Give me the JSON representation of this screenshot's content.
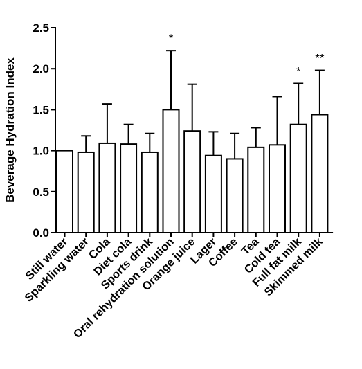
{
  "chart_data": {
    "type": "bar",
    "title": "",
    "xlabel": "",
    "ylabel": "Beverage Hydration Index",
    "ylim": [
      0,
      2.5
    ],
    "yticks": [
      "0.0",
      "0.5",
      "1.0",
      "1.5",
      "2.0",
      "2.5"
    ],
    "grid": false,
    "legend": "none",
    "categories": [
      "Still water",
      "Sparkling water",
      "Cola",
      "Diet cola",
      "Sports drink",
      "Oral rehydration solution",
      "Orange juice",
      "Lager",
      "Coffee",
      "Tea",
      "Cold tea",
      "Full fat milk",
      "Skimmed milk"
    ],
    "values": [
      1.0,
      0.98,
      1.09,
      1.08,
      0.98,
      1.5,
      1.24,
      0.94,
      0.9,
      1.04,
      1.07,
      1.32,
      1.44
    ],
    "error_upper": [
      1.0,
      1.18,
      1.57,
      1.32,
      1.21,
      2.22,
      1.81,
      1.23,
      1.21,
      1.28,
      1.66,
      1.82,
      1.98
    ],
    "annotations": [
      "",
      "",
      "",
      "",
      "",
      "*",
      "",
      "",
      "",
      "",
      "",
      "*",
      "**"
    ],
    "colors": {
      "bar_fill": "#ffffff",
      "stroke": "#000000"
    }
  }
}
